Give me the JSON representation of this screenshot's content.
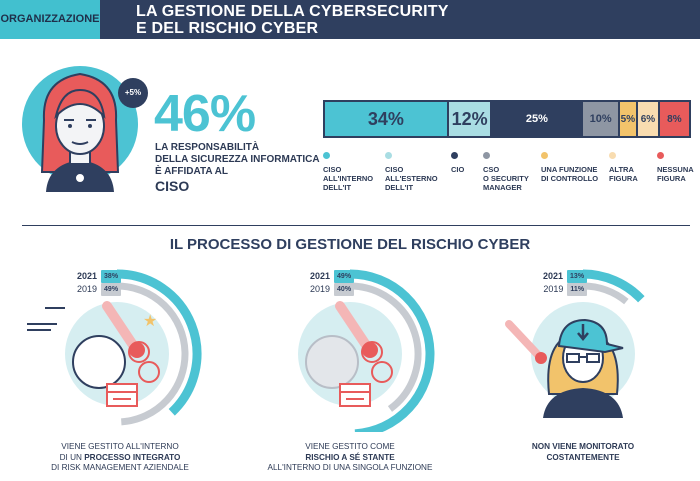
{
  "header": {
    "tag": "ORGANIZZAZIONE",
    "title_line1": "LA GESTIONE DELLA CYBERSECURITY",
    "title_line2": "E DEL RISCHIO CYBER"
  },
  "ciso_block": {
    "badge": "+5%",
    "big_percent": "46%",
    "resp_line1": "LA RESPONSABILITÀ",
    "resp_line2": "DELLA SICUREZZA INFORMATICA",
    "resp_line3": "È AFFIDATA AL",
    "resp_ciso": "CISO"
  },
  "stacked_bar": {
    "segments": [
      {
        "value": 34,
        "label": "34%",
        "color": "#4cc3d3"
      },
      {
        "value": 12,
        "label": "12%",
        "color": "#a9dde3"
      },
      {
        "value": 25,
        "label": "25%",
        "color": "#2f3f5f"
      },
      {
        "value": 10,
        "label": "10%",
        "color": "#8e96a3"
      },
      {
        "value": 5,
        "label": "5%",
        "color": "#f2c36b"
      },
      {
        "value": 6,
        "label": "6%",
        "color": "#f8dcb0"
      },
      {
        "value": 8,
        "label": "8%",
        "color": "#e85b5b"
      }
    ],
    "legend": [
      {
        "line1": "CISO",
        "line2": "ALL'INTERNO",
        "line3": "DELL'IT",
        "color": "#4cc3d3"
      },
      {
        "line1": "CISO",
        "line2": "ALL'ESTERNO",
        "line3": "DELL'IT",
        "color": "#a9dde3"
      },
      {
        "line1": "CIO",
        "line2": "",
        "line3": "",
        "color": "#2f3f5f"
      },
      {
        "line1": "CSO",
        "line2": "O SECURITY",
        "line3": "MANAGER",
        "color": "#8e96a3"
      },
      {
        "line1": "UNA FUNZIONE",
        "line2": "DI CONTROLLO",
        "line3": "",
        "color": "#f2c36b"
      },
      {
        "line1": "ALTRA",
        "line2": "FIGURA",
        "line3": "",
        "color": "#f8dcb0"
      },
      {
        "line1": "NESSUNA",
        "line2": "FIGURA",
        "line3": "",
        "color": "#e85b5b"
      }
    ]
  },
  "process": {
    "title": "IL PROCESSO DI GESTIONE DEL RISCHIO CYBER",
    "items": [
      {
        "year_a": "2021",
        "pct_a": "38%",
        "value_a": 38,
        "year_b": "2019",
        "pct_b": "49%",
        "value_b": 49,
        "cap1": "VIENE GESTITO ALL'INTERNO",
        "cap2a": "DI UN ",
        "cap2b": "PROCESSO INTEGRATO",
        "cap3": "DI RISK MANAGEMENT AZIENDALE"
      },
      {
        "year_a": "2021",
        "pct_a": "49%",
        "value_a": 49,
        "year_b": "2019",
        "pct_b": "40%",
        "value_b": 40,
        "cap1": "VIENE GESTITO COME",
        "cap2a": "",
        "cap2b": "RISCHIO A SÉ STANTE",
        "cap3": "ALL'INTERNO DI UNA SINGOLA FUNZIONE"
      },
      {
        "year_a": "2021",
        "pct_a": "13%",
        "value_a": 13,
        "year_b": "2019",
        "pct_b": "11%",
        "value_b": 11,
        "cap1": "NON VIENE MONITORATO",
        "cap2a": "",
        "cap2b": "COSTANTEMENTE",
        "cap3": ""
      }
    ]
  },
  "colors": {
    "navy": "#2f3f5f",
    "teal": "#4cc3d3",
    "light_teal": "#d6eef1",
    "grey": "#c7cbd1",
    "red": "#e85b5b"
  }
}
